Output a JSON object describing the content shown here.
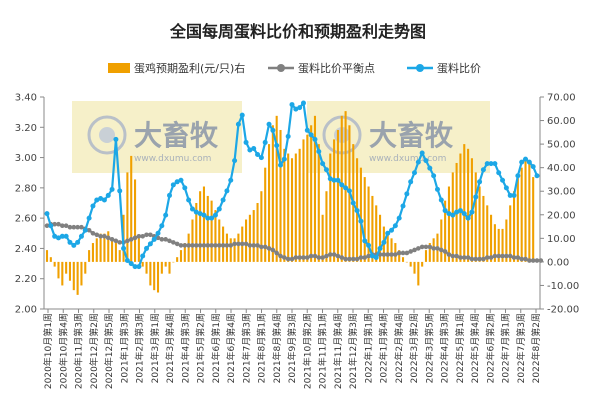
{
  "chart_data": {
    "type": "bar+line",
    "title": "全国每周蛋料比价和预期盈利走势图",
    "legend_position": "top",
    "grid": false,
    "x_ticks": [
      "2020年10月第1周",
      "2020年10月第4周",
      "2020年11月第3周",
      "2020年12月第2周",
      "2020年12月第5周",
      "2021年1月第3周",
      "2021年2月第3周",
      "2021年3月第1周",
      "2021年3月第4周",
      "2021年4月第3周",
      "2021年5月第2周",
      "2021年6月第1周",
      "2021年6月第4周",
      "2021年7月第3周",
      "2021年8月第1周",
      "2021年8月第4周",
      "2021年9月第3周",
      "2021年10月第2周",
      "2021年11月第1周",
      "2021年11月第4周",
      "2021年12月第3周",
      "2022年1月第1周",
      "2022年1月第4周",
      "2022年2月第4周",
      "2022年3月第2周",
      "2022年3月第5周",
      "2022年4月第3周",
      "2022年5月第1周",
      "2022年5月第4周",
      "2022年6月第2周",
      "2022年7月第1周",
      "2022年7月第3周",
      "2022年8月第2周"
    ],
    "y_left": {
      "min": 2.0,
      "max": 3.4,
      "step": 0.2,
      "ticks": [
        "2.00",
        "2.20",
        "2.40",
        "2.60",
        "2.80",
        "3.00",
        "3.20",
        "3.40"
      ]
    },
    "y_right": {
      "min": -20,
      "max": 70,
      "step": 10,
      "ticks": [
        "-20.00",
        "-10.00",
        "0.00",
        "10.00",
        "20.00",
        "30.00",
        "40.00",
        "50.00",
        "60.00",
        "70.00"
      ]
    },
    "watermark": {
      "brand": "大畜牧",
      "site": "www.dxumu.com"
    },
    "series": [
      {
        "name": "蛋鸡预期盈利(元/只)右",
        "type": "bar",
        "axis": "right",
        "color": "#F0A000",
        "values": [
          5,
          2,
          -2,
          -7,
          -10,
          -5,
          -8,
          -12,
          -14,
          -10,
          -5,
          5,
          8,
          10,
          12,
          12,
          13,
          10,
          8,
          5,
          20,
          38,
          45,
          35,
          10,
          -2,
          -5,
          -10,
          -12,
          -13,
          -5,
          -2,
          -5,
          0,
          2,
          5,
          8,
          12,
          18,
          25,
          30,
          32,
          28,
          26,
          22,
          18,
          15,
          12,
          10,
          10,
          12,
          15,
          18,
          20,
          22,
          25,
          30,
          40,
          50,
          58,
          62,
          56,
          48,
          46,
          44,
          46,
          48,
          52,
          54,
          58,
          62,
          50,
          20,
          30,
          46,
          52,
          56,
          62,
          64,
          58,
          50,
          44,
          40,
          36,
          32,
          28,
          24,
          20,
          15,
          12,
          10,
          8,
          5,
          2,
          0,
          -2,
          -5,
          -10,
          -2,
          5,
          8,
          10,
          12,
          18,
          26,
          32,
          38,
          42,
          46,
          50,
          48,
          44,
          38,
          32,
          28,
          24,
          20,
          16,
          14,
          14,
          18,
          24,
          30,
          36,
          40,
          44,
          42,
          36
        ]
      },
      {
        "name": "蛋料比价平衡点",
        "type": "line",
        "axis": "left",
        "color": "#808080",
        "values": [
          2.55,
          2.56,
          2.56,
          2.56,
          2.55,
          2.55,
          2.54,
          2.54,
          2.54,
          2.54,
          2.53,
          2.52,
          2.5,
          2.49,
          2.48,
          2.48,
          2.47,
          2.46,
          2.45,
          2.44,
          2.44,
          2.45,
          2.46,
          2.47,
          2.48,
          2.48,
          2.49,
          2.49,
          2.48,
          2.47,
          2.46,
          2.46,
          2.45,
          2.44,
          2.43,
          2.42,
          2.42,
          2.42,
          2.42,
          2.42,
          2.42,
          2.42,
          2.42,
          2.42,
          2.42,
          2.42,
          2.42,
          2.42,
          2.42,
          2.43,
          2.43,
          2.43,
          2.43,
          2.42,
          2.42,
          2.42,
          2.41,
          2.41,
          2.4,
          2.39,
          2.37,
          2.35,
          2.34,
          2.33,
          2.33,
          2.34,
          2.34,
          2.34,
          2.34,
          2.35,
          2.35,
          2.34,
          2.34,
          2.35,
          2.36,
          2.36,
          2.35,
          2.34,
          2.33,
          2.33,
          2.33,
          2.33,
          2.34,
          2.34,
          2.35,
          2.36,
          2.36,
          2.36,
          2.36,
          2.36,
          2.36,
          2.36,
          2.37,
          2.37,
          2.37,
          2.38,
          2.39,
          2.4,
          2.41,
          2.41,
          2.41,
          2.4,
          2.4,
          2.39,
          2.38,
          2.36,
          2.35,
          2.35,
          2.34,
          2.34,
          2.34,
          2.33,
          2.33,
          2.33,
          2.33,
          2.34,
          2.34,
          2.35,
          2.35,
          2.35,
          2.35,
          2.35,
          2.34,
          2.34,
          2.33,
          2.33,
          2.32,
          2.32,
          2.32,
          2.32
        ]
      },
      {
        "name": "蛋料比价",
        "type": "line",
        "axis": "left",
        "color": "#1CA7E6",
        "values": [
          2.63,
          2.55,
          2.48,
          2.47,
          2.48,
          2.48,
          2.44,
          2.42,
          2.44,
          2.48,
          2.52,
          2.6,
          2.68,
          2.72,
          2.73,
          2.72,
          2.75,
          2.79,
          3.12,
          2.78,
          2.4,
          2.32,
          2.3,
          2.28,
          2.28,
          2.35,
          2.4,
          2.43,
          2.46,
          2.5,
          2.55,
          2.62,
          2.75,
          2.82,
          2.84,
          2.85,
          2.8,
          2.72,
          2.66,
          2.64,
          2.63,
          2.62,
          2.6,
          2.6,
          2.62,
          2.66,
          2.72,
          2.78,
          2.85,
          2.98,
          3.22,
          3.28,
          3.1,
          3.05,
          3.06,
          3.02,
          3.0,
          3.1,
          3.22,
          3.18,
          3.08,
          2.95,
          2.99,
          3.14,
          3.35,
          3.32,
          3.33,
          3.36,
          3.18,
          3.15,
          3.12,
          3.04,
          2.96,
          2.92,
          2.86,
          2.85,
          2.85,
          2.82,
          2.8,
          2.78,
          2.7,
          2.65,
          2.58,
          2.45,
          2.42,
          2.35,
          2.34,
          2.4,
          2.44,
          2.5,
          2.52,
          2.55,
          2.6,
          2.68,
          2.76,
          2.84,
          2.9,
          2.97,
          3.03,
          2.98,
          2.93,
          2.88,
          2.79,
          2.72,
          2.65,
          2.63,
          2.62,
          2.64,
          2.65,
          2.63,
          2.6,
          2.64,
          2.74,
          2.84,
          2.92,
          2.96,
          2.96,
          2.96,
          2.9,
          2.85,
          2.8,
          2.75,
          2.75,
          2.88,
          2.97,
          2.99,
          2.97,
          2.94,
          2.88
        ]
      }
    ]
  }
}
